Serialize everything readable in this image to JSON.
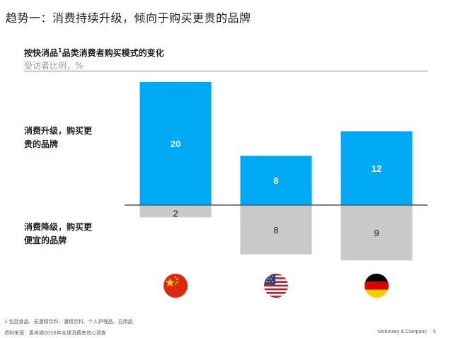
{
  "page_title": "趋势一：消费持续升级，倾向于购买更贵的品牌",
  "chart_data": {
    "type": "bar",
    "title": "按快消品",
    "title_superscript": "1",
    "title_suffix": "品类消费者购买模式的变化",
    "subtitle": "受访者比例，%",
    "categories": [
      "China",
      "United States",
      "Germany"
    ],
    "category_icons": [
      "china-flag-icon",
      "usa-flag-icon",
      "germany-flag-icon"
    ],
    "series": [
      {
        "name": "消费升级，购买更贵的品牌",
        "values": [
          20,
          8,
          12
        ],
        "color": "#00A9F4",
        "direction": "up"
      },
      {
        "name": "消费降级，购买更便宜的品牌",
        "values": [
          2,
          8,
          9
        ],
        "color": "#C9C9C9",
        "direction": "down"
      }
    ],
    "value_labels": {
      "upgrade": [
        "20",
        "8",
        "12"
      ],
      "downgrade": [
        "2",
        "8",
        "9"
      ]
    },
    "ylim": [
      -10,
      20
    ],
    "grid": false,
    "legend": "left"
  },
  "row_labels": {
    "upgrade": [
      "消费升级，购买更",
      "贵的品牌"
    ],
    "downgrade": [
      "消费降级，购买更",
      "便宜的品牌"
    ]
  },
  "footnotes": {
    "note1": "1 包括食品、无酒精饮料、酒精饮料、个人护理品、日用品",
    "source": "资料来源：麦肯锡2016年全球消费者信心调查"
  },
  "brand": "McKinsey & Company",
  "page_number": "6",
  "colors": {
    "upgrade": "#00A9F4",
    "downgrade": "#C9C9C9",
    "axis": "#555555"
  }
}
